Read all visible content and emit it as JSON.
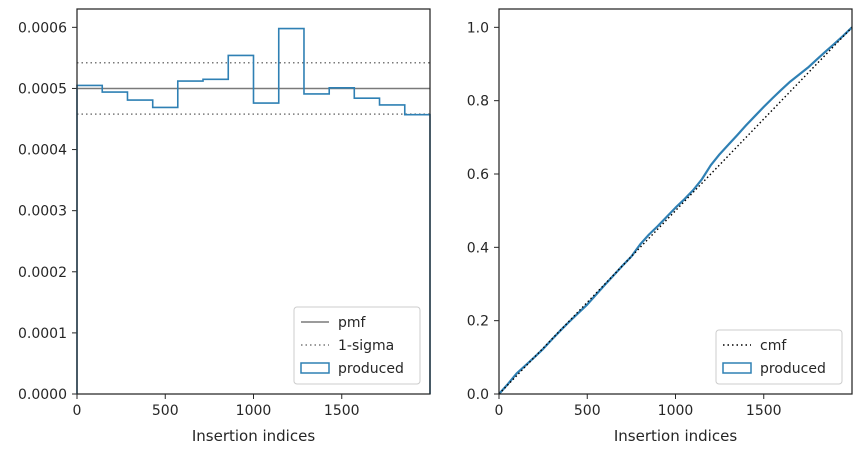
{
  "colors": {
    "produced": "#2f80b4",
    "pmf": "#7a7a7a",
    "sigma": "#7a7a7a",
    "cmf": "#000000",
    "axes": "#262626"
  },
  "chart_data": [
    {
      "type": "step",
      "xlabel": "Insertion indices",
      "ylabel": "",
      "xlim": [
        0,
        2000
      ],
      "ylim": [
        0,
        0.00063
      ],
      "xticks": [
        0,
        500,
        1000,
        1500
      ],
      "xtick_labels": [
        "0",
        "500",
        "1000",
        "1500"
      ],
      "yticks": [
        0,
        0.0001,
        0.0002,
        0.0003,
        0.0004,
        0.0005,
        0.0006
      ],
      "ytick_labels": [
        "0.0000",
        "0.0001",
        "0.0002",
        "0.0003",
        "0.0004",
        "0.0005",
        "0.0006"
      ],
      "bin_edges": [
        0,
        143,
        286,
        429,
        571,
        714,
        857,
        1000,
        1143,
        1286,
        1429,
        1571,
        1714,
        1857,
        2000
      ],
      "produced_values": [
        0.000505,
        0.000494,
        0.000481,
        0.000469,
        0.000512,
        0.000515,
        0.000554,
        0.000476,
        0.000598,
        0.000491,
        0.000501,
        0.000484,
        0.000473,
        0.000457
      ],
      "pmf": 0.0005,
      "sigma_upper": 0.000542,
      "sigma_lower": 0.000458,
      "legend": {
        "position": "lower right",
        "entries": [
          {
            "key": "pmf",
            "label": "pmf"
          },
          {
            "key": "sigma",
            "label": "1-sigma"
          },
          {
            "key": "produced",
            "label": "produced"
          }
        ]
      }
    },
    {
      "type": "line",
      "xlabel": "Insertion indices",
      "ylabel": "",
      "xlim": [
        0,
        2000
      ],
      "ylim": [
        0,
        1.05
      ],
      "xticks": [
        0,
        500,
        1000,
        1500
      ],
      "xtick_labels": [
        "0",
        "500",
        "1000",
        "1500"
      ],
      "yticks": [
        0,
        0.2,
        0.4,
        0.6,
        0.8,
        1.0
      ],
      "ytick_labels": [
        "0.0",
        "0.2",
        "0.4",
        "0.6",
        "0.8",
        "1.0"
      ],
      "cmf": {
        "x": [
          0,
          2000
        ],
        "y": [
          0,
          1.0
        ]
      },
      "produced": {
        "x": [
          0,
          50,
          100,
          150,
          200,
          250,
          300,
          350,
          400,
          450,
          500,
          550,
          600,
          650,
          700,
          750,
          800,
          850,
          900,
          950,
          1000,
          1050,
          1100,
          1150,
          1200,
          1250,
          1300,
          1350,
          1400,
          1450,
          1500,
          1550,
          1600,
          1650,
          1700,
          1750,
          1800,
          1850,
          1900,
          1950,
          2000
        ],
        "y": [
          0,
          0.027,
          0.056,
          0.078,
          0.1,
          0.123,
          0.149,
          0.174,
          0.198,
          0.221,
          0.244,
          0.271,
          0.298,
          0.324,
          0.35,
          0.375,
          0.408,
          0.435,
          0.458,
          0.483,
          0.508,
          0.531,
          0.556,
          0.586,
          0.624,
          0.654,
          0.68,
          0.706,
          0.733,
          0.758,
          0.783,
          0.807,
          0.83,
          0.852,
          0.871,
          0.89,
          0.912,
          0.934,
          0.955,
          0.977,
          1.0
        ]
      },
      "legend": {
        "position": "lower right",
        "entries": [
          {
            "key": "cmf",
            "label": "cmf"
          },
          {
            "key": "produced",
            "label": "produced"
          }
        ]
      }
    }
  ]
}
